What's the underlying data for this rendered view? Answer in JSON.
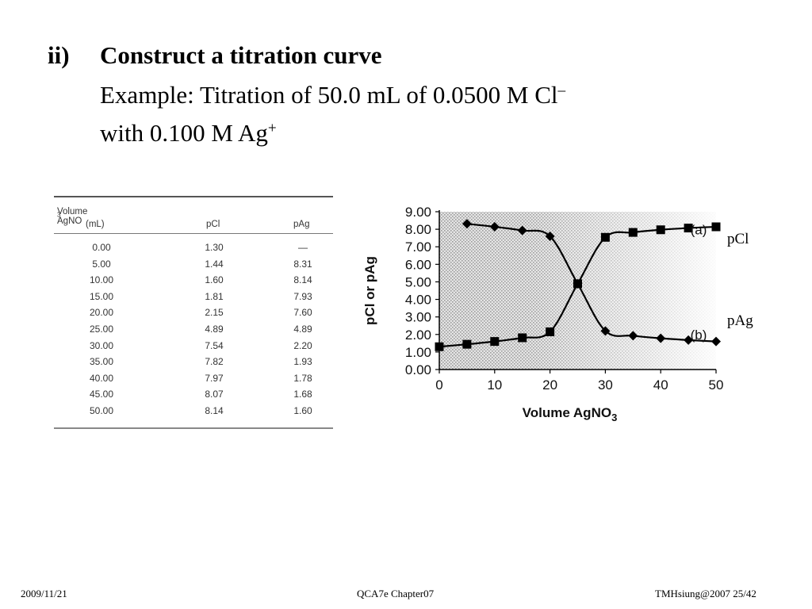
{
  "heading": {
    "number": "ii)",
    "title": "Construct a titration curve",
    "example_text": "Example: Titration of 50.0 mL of 0.0500 M Cl",
    "example_sup": "–",
    "with_text": "with 0.100 M Ag",
    "with_sup": "+"
  },
  "table": {
    "col1_header_line1": "Volume AgNO",
    "col1_header_sub": "3",
    "col1_header_line2": "(mL)",
    "col2_header": "pCl",
    "col3_header": "pAg",
    "rows": [
      [
        "0.00",
        "1.30",
        "—"
      ],
      [
        "5.00",
        "1.44",
        "8.31"
      ],
      [
        "10.00",
        "1.60",
        "8.14"
      ],
      [
        "15.00",
        "1.81",
        "7.93"
      ],
      [
        "20.00",
        "2.15",
        "7.60"
      ],
      [
        "25.00",
        "4.89",
        "4.89"
      ],
      [
        "30.00",
        "7.54",
        "2.20"
      ],
      [
        "35.00",
        "7.82",
        "1.93"
      ],
      [
        "40.00",
        "7.97",
        "1.78"
      ],
      [
        "45.00",
        "8.07",
        "1.68"
      ],
      [
        "50.00",
        "8.14",
        "1.60"
      ]
    ]
  },
  "chart_data": {
    "type": "line",
    "xlabel": "Volume AgNO",
    "xlabel_sub": "3",
    "ylabel": "pCl or pAg",
    "xlim": [
      0,
      50
    ],
    "ylim": [
      0,
      9
    ],
    "x_ticks": [
      "0",
      "10",
      "20",
      "30",
      "40",
      "50"
    ],
    "y_ticks": [
      "0.00",
      "1.00",
      "2.00",
      "3.00",
      "4.00",
      "5.00",
      "6.00",
      "7.00",
      "8.00",
      "9.00"
    ],
    "x": [
      0,
      5,
      10,
      15,
      20,
      25,
      30,
      35,
      40,
      45,
      50
    ],
    "series": [
      {
        "name": "(a)",
        "marker": "square",
        "values": [
          1.3,
          1.44,
          1.6,
          1.81,
          2.15,
          4.89,
          7.54,
          7.82,
          7.97,
          8.07,
          8.14
        ]
      },
      {
        "name": "(b)",
        "marker": "diamond",
        "values": [
          null,
          8.31,
          8.14,
          7.93,
          7.6,
          4.89,
          2.2,
          1.93,
          1.78,
          1.68,
          1.6
        ]
      }
    ],
    "background": "stippled gray fading to white",
    "line_color": "#000000"
  },
  "chart_side_labels": {
    "a": "pCl",
    "b": "pAg"
  },
  "footer": {
    "date": "2009/11/21",
    "center": "QCA7e Chapter07",
    "right": "TMHsiung@2007 25/42"
  }
}
